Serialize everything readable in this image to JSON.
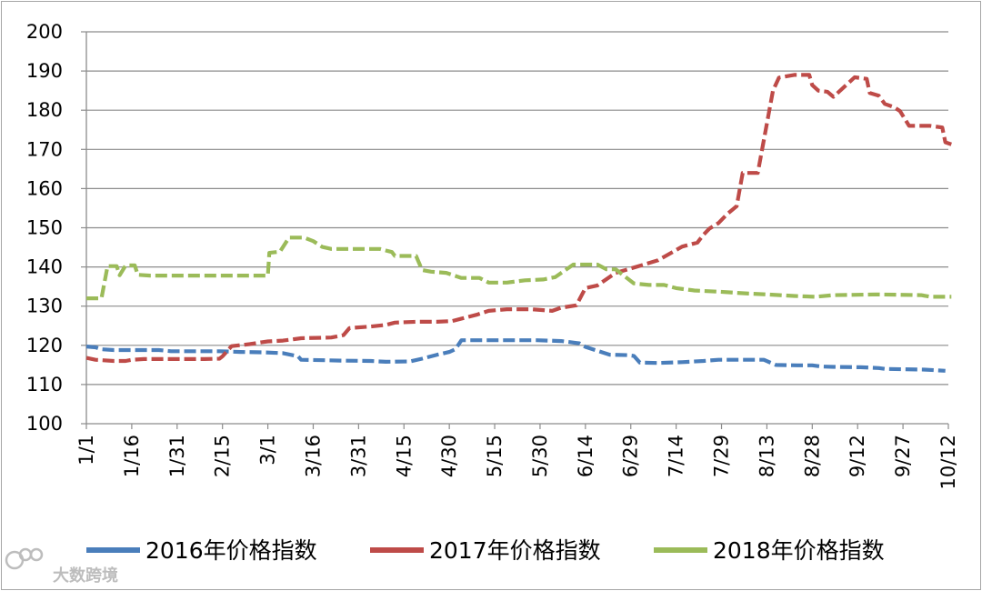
{
  "chart_data": {
    "type": "line",
    "title": "",
    "xlabel": "",
    "ylabel": "",
    "ylim": [
      100,
      200
    ],
    "yticks": [
      100,
      110,
      120,
      130,
      140,
      150,
      160,
      170,
      180,
      190,
      200
    ],
    "xticks": [
      "1/1",
      "1/16",
      "1/31",
      "2/15",
      "3/1",
      "3/16",
      "3/31",
      "4/15",
      "4/30",
      "5/15",
      "5/30",
      "6/14",
      "6/29",
      "7/14",
      "7/29",
      "8/13",
      "8/28",
      "9/12",
      "9/27",
      "10/12"
    ],
    "grid": true,
    "legend_position": "bottom",
    "series": [
      {
        "name": "2016年价格指数",
        "color": "#4a7ebb",
        "points": [
          [
            1,
            119.7
          ],
          [
            4,
            119.5
          ],
          [
            6,
            119
          ],
          [
            10,
            118.8
          ],
          [
            16,
            118.8
          ],
          [
            20,
            118.8
          ],
          [
            25,
            118.8
          ],
          [
            29,
            118.5
          ],
          [
            31,
            118.5
          ],
          [
            45,
            118.5
          ],
          [
            52,
            118.3
          ],
          [
            60,
            118.2
          ],
          [
            66,
            118
          ],
          [
            71,
            117.2
          ],
          [
            72,
            116.3
          ],
          [
            80,
            116.2
          ],
          [
            85,
            116.1
          ],
          [
            95,
            116
          ],
          [
            100,
            115.8
          ],
          [
            108,
            115.9
          ],
          [
            112,
            116.6
          ],
          [
            117,
            117.6
          ],
          [
            121,
            118.3
          ],
          [
            123,
            119
          ],
          [
            125,
            121.3
          ],
          [
            133,
            121.3
          ],
          [
            140,
            121.3
          ],
          [
            150,
            121.3
          ],
          [
            158,
            121.1
          ],
          [
            164,
            120.5
          ],
          [
            166,
            119.6
          ],
          [
            170,
            118.6
          ],
          [
            174,
            117.6
          ],
          [
            180,
            117.5
          ],
          [
            182,
            117.3
          ],
          [
            184,
            115.6
          ],
          [
            190,
            115.5
          ],
          [
            198,
            115.7
          ],
          [
            205,
            116
          ],
          [
            210,
            116.3
          ],
          [
            219,
            116.3
          ],
          [
            225,
            116.3
          ],
          [
            229,
            115
          ],
          [
            236,
            114.9
          ],
          [
            241,
            114.9
          ],
          [
            244,
            114.6
          ],
          [
            248,
            114.5
          ],
          [
            257,
            114.4
          ],
          [
            263,
            114.2
          ],
          [
            265,
            114
          ],
          [
            271,
            113.9
          ],
          [
            278,
            113.8
          ],
          [
            285,
            113.5
          ]
        ]
      },
      {
        "name": "2017年价格指数",
        "color": "#be4b48",
        "points": [
          [
            1,
            116.8
          ],
          [
            4,
            116.3
          ],
          [
            10,
            116
          ],
          [
            14,
            116
          ],
          [
            16,
            116.3
          ],
          [
            20,
            116.5
          ],
          [
            36,
            116.5
          ],
          [
            40,
            116.5
          ],
          [
            45,
            116.6
          ],
          [
            46,
            117.2
          ],
          [
            49,
            119.8
          ],
          [
            55,
            120.3
          ],
          [
            59,
            120.8
          ],
          [
            61,
            121
          ],
          [
            66,
            121.2
          ],
          [
            72,
            121.8
          ],
          [
            82,
            122
          ],
          [
            86,
            122.6
          ],
          [
            88,
            124.4
          ],
          [
            95,
            124.8
          ],
          [
            100,
            125.2
          ],
          [
            103,
            125.8
          ],
          [
            110,
            126
          ],
          [
            117,
            126
          ],
          [
            122,
            126.2
          ],
          [
            126,
            127
          ],
          [
            130,
            127.8
          ],
          [
            134,
            128.8
          ],
          [
            140,
            129.2
          ],
          [
            148,
            129.2
          ],
          [
            155,
            128.8
          ],
          [
            158,
            129.6
          ],
          [
            163,
            130.2
          ],
          [
            166,
            134.6
          ],
          [
            170,
            135.3
          ],
          [
            176,
            138.5
          ],
          [
            181,
            139.6
          ],
          [
            190,
            141.7
          ],
          [
            198,
            145.2
          ],
          [
            203,
            146.2
          ],
          [
            205,
            148.2
          ],
          [
            207,
            149.8
          ],
          [
            210,
            151.2
          ],
          [
            213,
            153.6
          ],
          [
            216,
            155.5
          ],
          [
            218,
            164
          ],
          [
            223,
            164
          ],
          [
            228,
            185
          ],
          [
            230,
            188.3
          ],
          [
            235,
            189
          ],
          [
            240,
            189
          ],
          [
            241,
            186.4
          ],
          [
            243,
            185
          ],
          [
            246,
            184.7
          ],
          [
            248,
            183.4
          ],
          [
            255,
            188.4
          ],
          [
            259,
            188
          ],
          [
            260,
            184.4
          ],
          [
            263,
            183.7
          ],
          [
            265,
            181.6
          ],
          [
            268,
            180.8
          ],
          [
            270,
            179.8
          ],
          [
            273,
            176
          ],
          [
            280,
            176
          ],
          [
            284,
            175.6
          ],
          [
            285,
            171.8
          ],
          [
            287,
            171.3
          ]
        ]
      },
      {
        "name": "2018年价格指数",
        "color": "#9bbb59",
        "points": [
          [
            1,
            132
          ],
          [
            6,
            132
          ],
          [
            8,
            140.2
          ],
          [
            11,
            140.2
          ],
          [
            12,
            137.9
          ],
          [
            14,
            140.4
          ],
          [
            17,
            140.4
          ],
          [
            18,
            138
          ],
          [
            22,
            137.8
          ],
          [
            30,
            137.8
          ],
          [
            40,
            137.8
          ],
          [
            57,
            137.8
          ],
          [
            61,
            137.8
          ],
          [
            61.5,
            143.6
          ],
          [
            65,
            143.9
          ],
          [
            68,
            147.5
          ],
          [
            73,
            147.5
          ],
          [
            76,
            146.6
          ],
          [
            79,
            145.1
          ],
          [
            82,
            144.6
          ],
          [
            90,
            144.6
          ],
          [
            98,
            144.6
          ],
          [
            102,
            143.8
          ],
          [
            103,
            142.8
          ],
          [
            110,
            142.8
          ],
          [
            112,
            139.2
          ],
          [
            115,
            138.8
          ],
          [
            120,
            138.5
          ],
          [
            125,
            137.2
          ],
          [
            131,
            137.2
          ],
          [
            134,
            136
          ],
          [
            140,
            136
          ],
          [
            146,
            136.6
          ],
          [
            152,
            136.8
          ],
          [
            156,
            137.4
          ],
          [
            159,
            139
          ],
          [
            162,
            140.6
          ],
          [
            170,
            140.6
          ],
          [
            173,
            139.4
          ],
          [
            176,
            139.4
          ],
          [
            182,
            135.8
          ],
          [
            187,
            135.4
          ],
          [
            192,
            135.4
          ],
          [
            196,
            134.6
          ],
          [
            202,
            134
          ],
          [
            210,
            133.7
          ],
          [
            220,
            133.2
          ],
          [
            226,
            133
          ],
          [
            235,
            132.6
          ],
          [
            242,
            132.4
          ],
          [
            248,
            132.8
          ],
          [
            256,
            132.9
          ],
          [
            262,
            133
          ],
          [
            270,
            132.9
          ],
          [
            277,
            132.8
          ],
          [
            280,
            132.4
          ],
          [
            287,
            132.4
          ]
        ]
      }
    ]
  },
  "watermark": {
    "text": "大数跨境",
    "icon": "logo-icon"
  }
}
